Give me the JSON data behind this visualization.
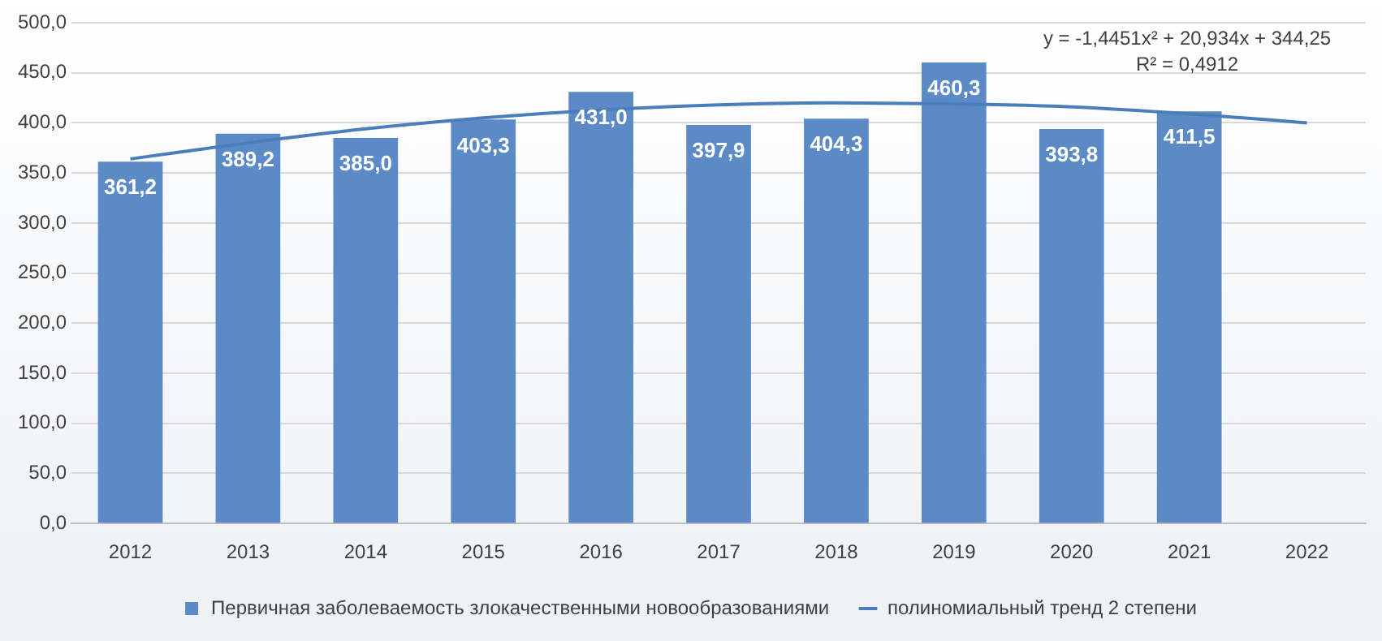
{
  "chart_data": {
    "type": "bar",
    "categories": [
      "2012",
      "2013",
      "2014",
      "2015",
      "2016",
      "2017",
      "2018",
      "2019",
      "2020",
      "2021",
      "2022"
    ],
    "series": [
      {
        "name": "Первичная заболеваемость злокачественными новообразованиями",
        "color": "#5b8ac6",
        "values": [
          361.2,
          389.2,
          385.0,
          403.3,
          431.0,
          397.9,
          404.3,
          460.3,
          393.8,
          411.5,
          null
        ],
        "value_labels": [
          "361,2",
          "389,2",
          "385,0",
          "403,3",
          "431,0",
          "397,9",
          "404,3",
          "460,3",
          "393,8",
          "411,5",
          null
        ]
      },
      {
        "name": "полиномиальный тренд 2 степени",
        "type": "line",
        "color": "#4a7ebb",
        "marker": "none",
        "values": [
          364,
          380,
          394,
          405,
          413,
          418,
          420,
          419,
          416,
          409,
          400
        ]
      }
    ],
    "ylim": [
      0,
      500
    ],
    "yticks": [
      {
        "value": 0,
        "label": "0,0"
      },
      {
        "value": 50,
        "label": "50,0"
      },
      {
        "value": 100,
        "label": "100,0"
      },
      {
        "value": 150,
        "label": "150,0"
      },
      {
        "value": 200,
        "label": "200,0"
      },
      {
        "value": 250,
        "label": "250,0"
      },
      {
        "value": 300,
        "label": "300,0"
      },
      {
        "value": 350,
        "label": "350,0"
      },
      {
        "value": 400,
        "label": "400,0"
      },
      {
        "value": 450,
        "label": "450,0"
      },
      {
        "value": 500,
        "label": "500,0"
      }
    ],
    "grid": "y",
    "legend": "bottom",
    "annotations": [
      "y = -1,4451x² + 20,934x + 344,25",
      "R² = 0,4912"
    ]
  }
}
